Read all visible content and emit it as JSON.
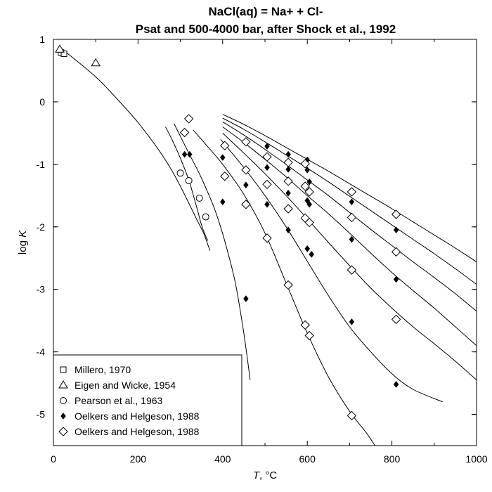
{
  "chart_data": {
    "type": "scatter",
    "title": "NaCl(aq) = Na+ + Cl-",
    "subtitle": "Psat and 500-4000 bar, after Shock et al., 1992",
    "xlabel_italic": "T",
    "xlabel_rest": ", °C",
    "ylabel_plain": "log ",
    "ylabel_italic": "K",
    "xlim": [
      0,
      1000
    ],
    "ylim": [
      -5.5,
      1
    ],
    "xticks": [
      0,
      200,
      400,
      600,
      800,
      1000
    ],
    "yticks": [
      -5,
      -4,
      -3,
      -2,
      -1,
      0,
      1
    ],
    "grid": false,
    "legend_position": "bottom-left",
    "series": [
      {
        "name": "Millero, 1970",
        "marker": "square",
        "points": [
          [
            18,
            0.79
          ],
          [
            25,
            0.77
          ]
        ]
      },
      {
        "name": "Eigen and Wicke, 1954",
        "marker": "triangle",
        "points": [
          [
            15,
            0.84
          ],
          [
            100,
            0.62
          ]
        ]
      },
      {
        "name": "Pearson et al., 1963",
        "marker": "circle",
        "points": [
          [
            300,
            -1.14
          ],
          [
            320,
            -1.26
          ],
          [
            345,
            -1.54
          ],
          [
            360,
            -1.84
          ]
        ]
      },
      {
        "name": "Oelkers and Helgeson, 1988",
        "marker": "diamond-filled",
        "points": [
          [
            310,
            -0.84
          ],
          [
            322,
            -0.84
          ],
          [
            400,
            -0.89
          ],
          [
            400,
            -1.6
          ],
          [
            455,
            -0.65
          ],
          [
            455,
            -1.33
          ],
          [
            455,
            -3.15
          ],
          [
            505,
            -0.71
          ],
          [
            505,
            -1.05
          ],
          [
            505,
            -1.64
          ],
          [
            555,
            -0.84
          ],
          [
            555,
            -1.08
          ],
          [
            555,
            -1.46
          ],
          [
            555,
            -2.05
          ],
          [
            600,
            -0.93
          ],
          [
            600,
            -1.09
          ],
          [
            600,
            -1.58
          ],
          [
            600,
            -2.35
          ],
          [
            605,
            -1.28
          ],
          [
            605,
            -1.64
          ],
          [
            610,
            -2.44
          ],
          [
            705,
            -1.6
          ],
          [
            705,
            -2.2
          ],
          [
            705,
            -3.52
          ],
          [
            810,
            -2.05
          ],
          [
            810,
            -2.84
          ],
          [
            810,
            -4.52
          ]
        ]
      },
      {
        "name": "Oelkers and Helgeson, 1988",
        "marker": "diamond",
        "points": [
          [
            320,
            -0.27
          ],
          [
            310,
            -0.49
          ],
          [
            405,
            -0.7
          ],
          [
            405,
            -1.19
          ],
          [
            455,
            -0.64
          ],
          [
            455,
            -1.09
          ],
          [
            455,
            -1.64
          ],
          [
            505,
            -0.88
          ],
          [
            505,
            -1.32
          ],
          [
            505,
            -2.18
          ],
          [
            555,
            -0.97
          ],
          [
            555,
            -1.27
          ],
          [
            555,
            -1.71
          ],
          [
            555,
            -2.93
          ],
          [
            595,
            -0.99
          ],
          [
            595,
            -1.35
          ],
          [
            595,
            -1.86
          ],
          [
            595,
            -3.57
          ],
          [
            605,
            -1.44
          ],
          [
            605,
            -1.93
          ],
          [
            605,
            -3.74
          ],
          [
            705,
            -1.44
          ],
          [
            705,
            -1.85
          ],
          [
            705,
            -2.69
          ],
          [
            705,
            -5.02
          ],
          [
            810,
            -1.8
          ],
          [
            810,
            -2.4
          ],
          [
            810,
            -3.48
          ]
        ]
      }
    ],
    "curves": [
      {
        "x": [
          25,
          100,
          150,
          200,
          250,
          280,
          300,
          320,
          340,
          355,
          370
        ],
        "y": [
          0.82,
          0.4,
          0.05,
          -0.33,
          -0.78,
          -1.1,
          -1.35,
          -1.62,
          -1.9,
          -2.1,
          -2.38
        ]
      },
      {
        "x": [
          265,
          280,
          300,
          320,
          330,
          340,
          350,
          360,
          365
        ],
        "y": [
          -0.4,
          -0.6,
          -0.9,
          -1.25,
          -1.48,
          -1.72,
          -1.97,
          -2.15,
          -2.22
        ]
      },
      {
        "x": [
          285,
          300,
          320,
          345,
          365,
          380,
          395,
          410,
          430,
          450,
          465
        ],
        "y": [
          -0.35,
          -0.55,
          -0.82,
          -1.15,
          -1.45,
          -1.7,
          -2.0,
          -2.35,
          -2.9,
          -3.7,
          -4.45
        ]
      },
      {
        "x": [
          330,
          360,
          400,
          450,
          500,
          550,
          600,
          650,
          700,
          740,
          760
        ],
        "y": [
          -0.45,
          -0.68,
          -1.0,
          -1.48,
          -2.1,
          -2.9,
          -3.7,
          -4.4,
          -4.95,
          -5.3,
          -5.5
        ]
      },
      {
        "x": [
          395,
          450,
          500,
          550,
          600,
          650,
          700,
          750,
          800,
          850,
          920
        ],
        "y": [
          -0.6,
          -1.05,
          -1.5,
          -2.0,
          -2.55,
          -3.1,
          -3.6,
          -4.0,
          -4.35,
          -4.6,
          -4.8
        ]
      },
      {
        "x": [
          400,
          450,
          500,
          550,
          600,
          650,
          700,
          750,
          800,
          850,
          900,
          950,
          1000
        ],
        "y": [
          -0.5,
          -0.82,
          -1.15,
          -1.5,
          -1.87,
          -2.25,
          -2.62,
          -2.98,
          -3.3,
          -3.6,
          -3.87,
          -4.15,
          -4.45
        ]
      },
      {
        "x": [
          400,
          450,
          500,
          550,
          600,
          650,
          700,
          750,
          800,
          850,
          900,
          950,
          1000
        ],
        "y": [
          -0.4,
          -0.65,
          -0.92,
          -1.2,
          -1.5,
          -1.79,
          -2.1,
          -2.42,
          -2.73,
          -3.02,
          -3.3,
          -3.6,
          -3.9
        ]
      },
      {
        "x": [
          400,
          450,
          500,
          550,
          600,
          650,
          700,
          750,
          800,
          850,
          900,
          950,
          1000
        ],
        "y": [
          -0.32,
          -0.53,
          -0.76,
          -1.0,
          -1.25,
          -1.5,
          -1.77,
          -2.04,
          -2.3,
          -2.56,
          -2.81,
          -3.07,
          -3.35
        ]
      },
      {
        "x": [
          400,
          450,
          500,
          550,
          600,
          650,
          700,
          750,
          800,
          850,
          900,
          950,
          1000
        ],
        "y": [
          -0.26,
          -0.44,
          -0.64,
          -0.85,
          -1.06,
          -1.28,
          -1.51,
          -1.74,
          -1.97,
          -2.2,
          -2.43,
          -2.67,
          -2.92
        ]
      },
      {
        "x": [
          400,
          450,
          500,
          550,
          600,
          650,
          700,
          750,
          800,
          850,
          900,
          950,
          1000
        ],
        "y": [
          -0.2,
          -0.36,
          -0.54,
          -0.73,
          -0.92,
          -1.11,
          -1.31,
          -1.51,
          -1.71,
          -1.92,
          -2.13,
          -2.34,
          -2.56
        ]
      }
    ]
  }
}
